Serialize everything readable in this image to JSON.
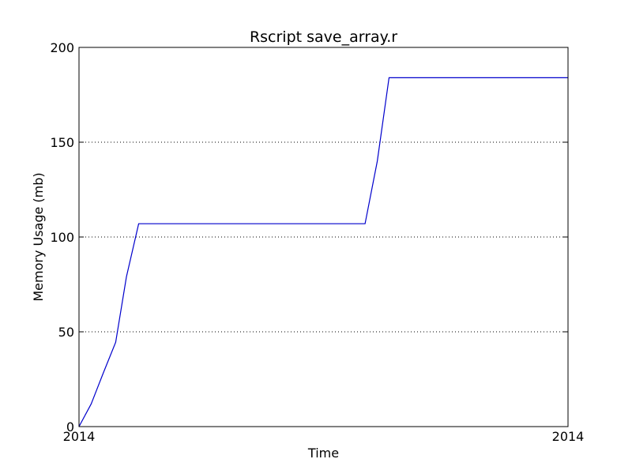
{
  "chart_data": {
    "type": "line",
    "title": "Rscript save_array.r",
    "xlabel": "Time",
    "ylabel": "Memory Usage (mb)",
    "xlim": [
      0,
      100
    ],
    "ylim": [
      0,
      200
    ],
    "x_tick_labels": [
      "2014",
      "2014"
    ],
    "y_ticks": [
      0,
      50,
      100,
      150,
      200
    ],
    "y_tick_labels": [
      "0",
      "50",
      "100",
      "150",
      "200"
    ],
    "grid": "y-major",
    "series": [
      {
        "color": "#0000cc",
        "x": [
          0,
          2.5,
          5,
          7.5,
          9.7,
          12.2,
          58.5,
          61,
          63.4,
          100
        ],
        "y": [
          0,
          12,
          28.5,
          44.5,
          79,
          107,
          107,
          140,
          184,
          184
        ]
      }
    ]
  }
}
